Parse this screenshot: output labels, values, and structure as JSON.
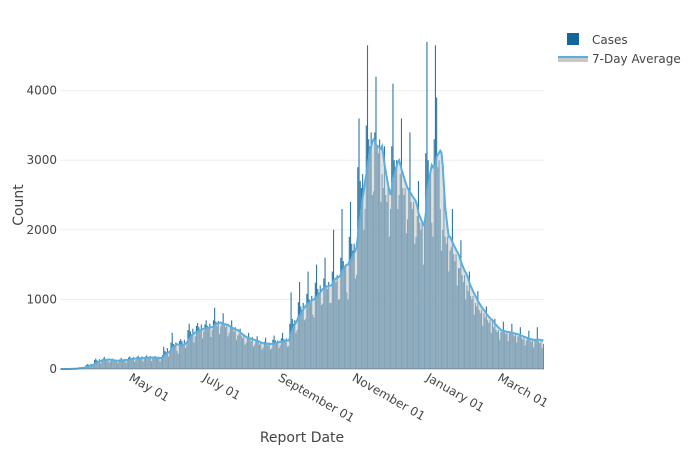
{
  "chart_data": {
    "type": "bar",
    "title": "",
    "xlabel": "Report Date",
    "ylabel": "Count",
    "ylim": [
      0,
      5000
    ],
    "y_ticks": [
      0,
      1000,
      2000,
      3000,
      4000
    ],
    "x_tick_labels": [
      "May 01",
      "July 01",
      "September 01",
      "November 01",
      "January 01",
      "March 01"
    ],
    "x_tick_day_index": [
      59,
      120,
      182,
      243,
      304,
      363
    ],
    "start_date": "2020-03-03",
    "grid": true,
    "legend_position": "top-right",
    "colors": {
      "cases": "#14679a",
      "average_line": "#5aafe0",
      "average_fill": "#c8c8c8",
      "grid": "#eeeeee"
    },
    "series": [
      {
        "name": "Cases",
        "kind": "bar",
        "values": [
          0,
          0,
          0,
          0,
          0,
          1,
          2,
          3,
          5,
          6,
          4,
          7,
          3,
          8,
          15,
          22,
          25,
          18,
          24,
          14,
          22,
          55,
          70,
          62,
          58,
          75,
          45,
          60,
          130,
          150,
          125,
          110,
          140,
          80,
          120,
          150,
          175,
          140,
          130,
          145,
          95,
          110,
          130,
          150,
          120,
          115,
          125,
          85,
          115,
          140,
          160,
          135,
          125,
          145,
          90,
          120,
          165,
          180,
          160,
          140,
          170,
          105,
          130,
          175,
          190,
          165,
          150,
          180,
          110,
          150,
          180,
          195,
          170,
          155,
          185,
          115,
          155,
          175,
          185,
          160,
          150,
          175,
          110,
          165,
          200,
          320,
          260,
          240,
          300,
          180,
          250,
          380,
          520,
          360,
          330,
          380,
          260,
          220,
          400,
          430,
          400,
          360,
          420,
          300,
          350,
          560,
          650,
          540,
          500,
          580,
          380,
          470,
          620,
          660,
          600,
          560,
          640,
          440,
          540,
          640,
          700,
          620,
          580,
          650,
          460,
          560,
          700,
          880,
          680,
          620,
          690,
          500,
          610,
          660,
          800,
          640,
          600,
          650,
          470,
          520,
          600,
          700,
          580,
          540,
          600,
          420,
          480,
          500,
          580,
          480,
          440,
          490,
          350,
          380,
          450,
          520,
          440,
          400,
          460,
          320,
          350,
          400,
          470,
          390,
          350,
          390,
          280,
          310,
          390,
          450,
          380,
          340,
          380,
          280,
          300,
          420,
          480,
          410,
          370,
          410,
          300,
          340,
          440,
          520,
          430,
          390,
          440,
          320,
          330,
          650,
          1100,
          720,
          650,
          700,
          520,
          560,
          960,
          1250,
          900,
          850,
          950,
          700,
          720,
          1080,
          1400,
          1000,
          950,
          1050,
          780,
          740,
          1240,
          1500,
          1150,
          1100,
          1200,
          920,
          940,
          1300,
          1600,
          1200,
          1150,
          1250,
          950,
          950,
          1400,
          2000,
          1300,
          1250,
          1350,
          1000,
          1000,
          1600,
          2300,
          1550,
          1450,
          1500,
          1100,
          1000,
          1900,
          2400,
          1800,
          1700,
          1800,
          1300,
          1350,
          2900,
          3600,
          2700,
          2600,
          2800,
          2000,
          2300,
          3500,
          4650,
          3300,
          3200,
          3400,
          2500,
          2550,
          3400,
          4200,
          3200,
          3100,
          3300,
          2400,
          2800,
          2600,
          3200,
          2500,
          2400,
          2600,
          1900,
          2300,
          3200,
          4100,
          3000,
          2900,
          3000,
          2300,
          2500,
          2800,
          3600,
          2600,
          2500,
          2600,
          1950,
          2150,
          2600,
          3400,
          2400,
          2300,
          2400,
          1800,
          1900,
          2200,
          2700,
          2100,
          2000,
          2100,
          1500,
          2100,
          3100,
          4700,
          3000,
          2700,
          2800,
          2100,
          1900,
          3300,
          4650,
          3900,
          2900,
          3000,
          2300,
          1700,
          2000,
          2600,
          1900,
          1800,
          1900,
          1400,
          1700,
          1750,
          2300,
          1650,
          1550,
          1650,
          1200,
          1450,
          1450,
          1850,
          1350,
          1250,
          1350,
          1000,
          1200,
          1120,
          1400,
          1050,
          1000,
          1050,
          780,
          950,
          900,
          1120,
          850,
          800,
          850,
          620,
          800,
          740,
          900,
          700,
          660,
          700,
          520,
          680,
          600,
          720,
          560,
          530,
          560,
          420,
          530,
          560,
          680,
          530,
          500,
          530,
          400,
          510,
          530,
          650,
          500,
          470,
          500,
          380,
          470,
          480,
          600,
          450,
          420,
          450,
          340,
          410,
          440,
          550,
          420,
          390,
          420,
          310,
          410,
          420,
          600,
          400,
          370,
          400,
          300,
          360
        ]
      },
      {
        "name": "7-Day Average",
        "kind": "line",
        "window": 7
      }
    ],
    "legend": [
      "Cases",
      "7-Day Average"
    ]
  }
}
